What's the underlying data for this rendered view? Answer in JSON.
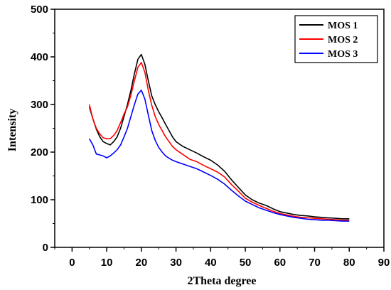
{
  "chart_data": {
    "type": "line",
    "title": "",
    "xlabel": "2Theta degree",
    "ylabel": "Intensity",
    "xlim": [
      -5,
      90
    ],
    "ylim": [
      0,
      500
    ],
    "xticks": [
      "0",
      "10",
      "20",
      "30",
      "40",
      "50",
      "60",
      "70",
      "80",
      "90"
    ],
    "yticks": [
      "0",
      "100",
      "200",
      "300",
      "400",
      "500"
    ],
    "grid": false,
    "legend_position": "top-right",
    "series": [
      {
        "name": "MOS 1",
        "color": "#000000",
        "x": [
          5,
          6,
          7,
          8,
          9,
          10,
          11,
          12,
          13,
          14,
          15,
          16,
          17,
          18,
          19,
          20,
          21,
          22,
          23,
          24,
          25,
          26,
          27,
          28,
          29,
          30,
          32,
          34,
          36,
          38,
          40,
          42,
          44,
          46,
          48,
          50,
          52,
          54,
          56,
          58,
          60,
          62,
          64,
          66,
          68,
          70,
          72,
          74,
          76,
          78,
          80
        ],
        "y": [
          295,
          270,
          248,
          232,
          222,
          218,
          215,
          222,
          232,
          250,
          275,
          300,
          330,
          365,
          395,
          405,
          385,
          350,
          318,
          300,
          285,
          272,
          258,
          245,
          232,
          222,
          212,
          205,
          198,
          190,
          183,
          173,
          160,
          142,
          126,
          110,
          100,
          93,
          88,
          81,
          75,
          72,
          69,
          67,
          66,
          64,
          63,
          62,
          61,
          60,
          60
        ]
      },
      {
        "name": "MOS 2",
        "color": "#ff0000",
        "x": [
          5,
          6,
          7,
          8,
          9,
          10,
          11,
          12,
          13,
          14,
          15,
          16,
          17,
          18,
          19,
          20,
          21,
          22,
          23,
          24,
          25,
          26,
          27,
          28,
          29,
          30,
          32,
          34,
          36,
          38,
          40,
          42,
          44,
          46,
          48,
          50,
          52,
          54,
          56,
          58,
          60,
          62,
          64,
          66,
          68,
          70,
          72,
          74,
          76,
          78,
          80
        ],
        "y": [
          300,
          270,
          250,
          238,
          230,
          228,
          228,
          235,
          245,
          262,
          280,
          295,
          320,
          350,
          378,
          388,
          368,
          330,
          298,
          275,
          258,
          245,
          232,
          222,
          212,
          205,
          195,
          185,
          180,
          172,
          165,
          158,
          148,
          132,
          118,
          103,
          95,
          88,
          82,
          76,
          71,
          68,
          65,
          63,
          62,
          61,
          60,
          59,
          58,
          57,
          57
        ]
      },
      {
        "name": "MOS 3",
        "color": "#0000ff",
        "x": [
          5,
          6,
          7,
          8,
          9,
          10,
          11,
          12,
          13,
          14,
          15,
          16,
          17,
          18,
          19,
          20,
          21,
          22,
          23,
          24,
          25,
          26,
          27,
          28,
          29,
          30,
          32,
          34,
          36,
          38,
          40,
          42,
          44,
          46,
          48,
          50,
          52,
          54,
          56,
          58,
          60,
          62,
          64,
          66,
          68,
          70,
          72,
          74,
          76,
          78,
          80
        ],
        "y": [
          228,
          215,
          196,
          194,
          192,
          188,
          192,
          198,
          205,
          215,
          232,
          250,
          275,
          300,
          322,
          330,
          312,
          278,
          245,
          225,
          210,
          200,
          192,
          187,
          183,
          180,
          175,
          170,
          165,
          158,
          151,
          143,
          133,
          120,
          108,
          97,
          90,
          83,
          78,
          73,
          69,
          66,
          63,
          61,
          59,
          58,
          57,
          57,
          56,
          55,
          55
        ]
      }
    ]
  }
}
